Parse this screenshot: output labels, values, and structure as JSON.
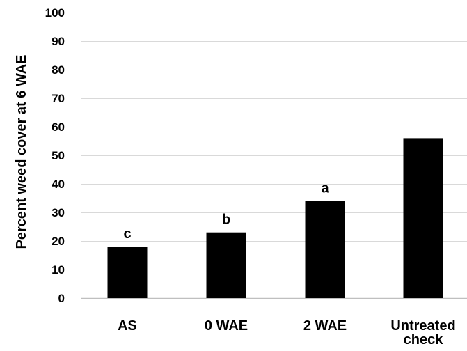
{
  "chart_data": {
    "type": "bar",
    "title": "",
    "xlabel": "",
    "ylabel": "Percent weed cover at 6 WAE",
    "ylim": [
      0,
      100
    ],
    "yticks": [
      0,
      10,
      20,
      30,
      40,
      50,
      60,
      70,
      80,
      90,
      100
    ],
    "grid": true,
    "categories": [
      [
        "AS"
      ],
      [
        "0 WAE"
      ],
      [
        "2 WAE"
      ],
      [
        "Untreated",
        "check"
      ]
    ],
    "values": [
      18,
      23,
      34,
      56
    ],
    "significance_letters": [
      "c",
      "b",
      "a",
      ""
    ],
    "colors": {
      "bar": "#000000",
      "grid": "#d9d9d9",
      "axis": "#bfbfbf",
      "text": "#000000"
    }
  }
}
